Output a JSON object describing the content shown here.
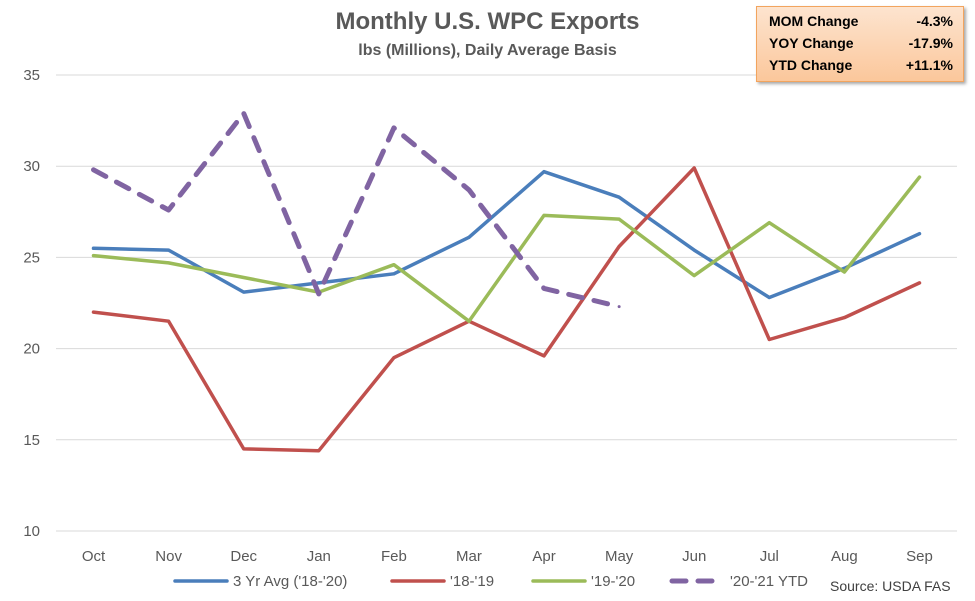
{
  "chart_data": {
    "type": "line",
    "title": "Monthly U.S. WPC Exports",
    "subtitle": "lbs (Millions), Daily Average Basis",
    "categories": [
      "Oct",
      "Nov",
      "Dec",
      "Jan",
      "Feb",
      "Mar",
      "Apr",
      "May",
      "Jun",
      "Jul",
      "Aug",
      "Sep"
    ],
    "ylim": [
      10,
      35
    ],
    "yticks": [
      10,
      15,
      20,
      25,
      30,
      35
    ],
    "grid": true,
    "legend_position": "bottom",
    "series": [
      {
        "name": "3 Yr Avg ('18-'20)",
        "color": "#4a7ebb",
        "dashed": false,
        "values": [
          25.5,
          25.4,
          23.1,
          23.6,
          24.1,
          26.1,
          29.7,
          28.3,
          25.4,
          22.8,
          24.4,
          26.3
        ]
      },
      {
        "name": "'18-'19",
        "color": "#c0504d",
        "dashed": false,
        "values": [
          22.0,
          21.5,
          14.5,
          14.4,
          19.5,
          21.5,
          19.6,
          25.6,
          29.9,
          20.5,
          21.7,
          23.6
        ]
      },
      {
        "name": "'19-'20",
        "color": "#9bbb59",
        "dashed": false,
        "values": [
          25.1,
          24.7,
          23.9,
          23.1,
          24.6,
          21.5,
          27.3,
          27.1,
          24.0,
          26.9,
          24.2,
          29.4
        ]
      },
      {
        "name": "'20-'21 YTD",
        "color": "#8064a2",
        "dashed": true,
        "values": [
          29.8,
          27.6,
          32.9,
          23.0,
          32.1,
          28.7,
          23.3,
          22.3,
          null,
          null,
          null,
          null
        ]
      }
    ],
    "change_box": [
      {
        "label": "MOM Change",
        "value": "-4.3%"
      },
      {
        "label": "YOY Change",
        "value": "-17.9%"
      },
      {
        "label": "YTD Change",
        "value": "+11.1%"
      }
    ],
    "source": "Source: USDA FAS"
  }
}
